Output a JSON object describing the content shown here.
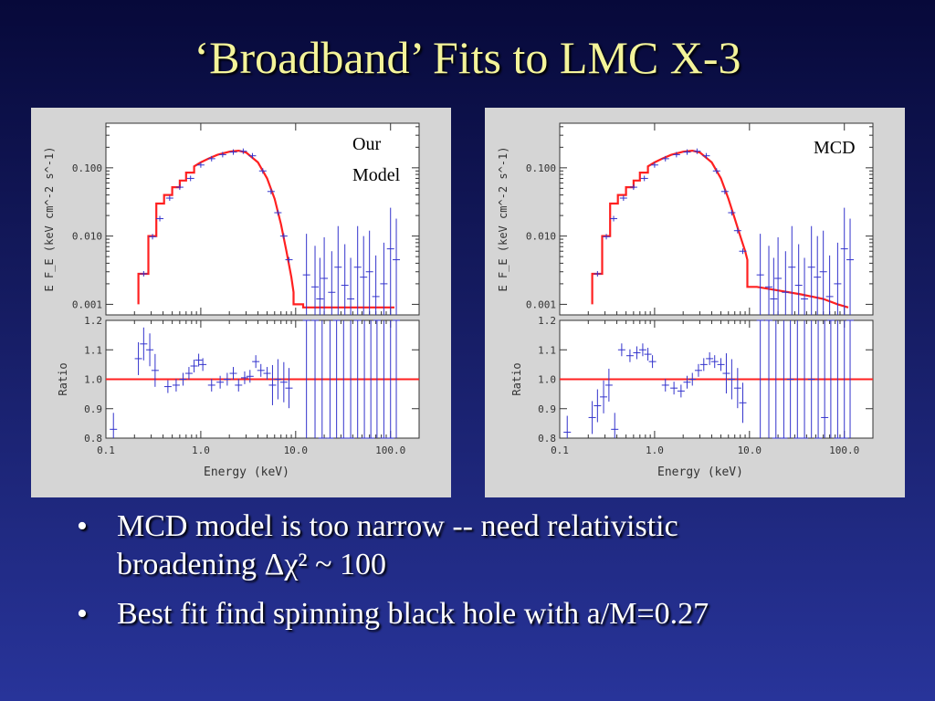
{
  "slide": {
    "title": "‘Broadband’ Fits to LMC X-3",
    "bullets": [
      {
        "dot": "•",
        "line1": "MCD model is too narrow -- need relativistic",
        "line2": "broadening Δχ² ~ 100"
      },
      {
        "dot": "•",
        "line1": "Best fit find spinning black hole with a/M=0.27",
        "line2": ""
      }
    ]
  },
  "colors": {
    "model": "#ff2020",
    "data": "#3333cc",
    "axis": "#333333",
    "panel_bg": "#d5d5d5",
    "title": "#f4f49a"
  },
  "chart_data": [
    {
      "type": "line",
      "label": "Our Model",
      "xlabel": "Energy (keV)",
      "spectrum": {
        "ylabel": "E F_E (keV cm^-2 s^-1)",
        "yscale": "log",
        "xscale": "log",
        "xlim": [
          0.1,
          200
        ],
        "ylim": [
          0.0007,
          0.45
        ],
        "yticks": [
          "0.001",
          "0.010",
          "0.100"
        ],
        "model": [
          [
            0.22,
            0.001
          ],
          [
            0.22,
            0.0028
          ],
          [
            0.28,
            0.0028
          ],
          [
            0.28,
            0.01
          ],
          [
            0.34,
            0.01
          ],
          [
            0.34,
            0.03
          ],
          [
            0.41,
            0.03
          ],
          [
            0.41,
            0.04
          ],
          [
            0.5,
            0.04
          ],
          [
            0.5,
            0.052
          ],
          [
            0.6,
            0.052
          ],
          [
            0.6,
            0.065
          ],
          [
            0.7,
            0.065
          ],
          [
            0.7,
            0.085
          ],
          [
            0.85,
            0.085
          ],
          [
            0.85,
            0.105
          ],
          [
            1.0,
            0.12
          ],
          [
            1.2,
            0.136
          ],
          [
            1.5,
            0.155
          ],
          [
            2.0,
            0.172
          ],
          [
            2.5,
            0.178
          ],
          [
            3.0,
            0.168
          ],
          [
            4.0,
            0.12
          ],
          [
            5.0,
            0.07
          ],
          [
            6.0,
            0.035
          ],
          [
            7.0,
            0.015
          ],
          [
            8.0,
            0.006
          ],
          [
            9.0,
            0.0025
          ],
          [
            9.5,
            0.0015
          ],
          [
            9.5,
            0.001
          ],
          [
            12,
            0.001
          ],
          [
            12,
            0.0009
          ],
          [
            60,
            0.0009
          ],
          [
            110,
            0.0009
          ]
        ],
        "points": [
          [
            0.25,
            0.0028
          ],
          [
            0.31,
            0.0098
          ],
          [
            0.37,
            0.018
          ],
          [
            0.47,
            0.036
          ],
          [
            0.6,
            0.052
          ],
          [
            0.78,
            0.07
          ],
          [
            1.0,
            0.11
          ],
          [
            1.3,
            0.136
          ],
          [
            1.7,
            0.156
          ],
          [
            2.2,
            0.17
          ],
          [
            2.8,
            0.175
          ],
          [
            3.5,
            0.15
          ],
          [
            4.5,
            0.09
          ],
          [
            5.5,
            0.045
          ],
          [
            6.5,
            0.022
          ],
          [
            7.5,
            0.01
          ],
          [
            8.5,
            0.0045
          ],
          [
            13,
            0.0027
          ],
          [
            16,
            0.0018
          ],
          [
            18,
            0.0012
          ],
          [
            20,
            0.0024
          ],
          [
            24,
            0.0015
          ],
          [
            28,
            0.0035
          ],
          [
            33,
            0.0019
          ],
          [
            38,
            0.0012
          ],
          [
            45,
            0.0035
          ],
          [
            52,
            0.0025
          ],
          [
            60,
            0.003
          ],
          [
            70,
            0.0013
          ],
          [
            85,
            0.002
          ],
          [
            100,
            0.0065
          ],
          [
            115,
            0.0045
          ]
        ]
      },
      "ratio": {
        "ylabel": "Ratio",
        "ylim": [
          0.8,
          1.2
        ],
        "yticks": [
          "0.8",
          "0.9",
          "1.0",
          "1.1",
          "1.2"
        ],
        "xticks": [
          "0.1",
          "1.0",
          "10.0",
          "100.0"
        ],
        "model_level": 1.0,
        "points": [
          [
            0.12,
            0.83
          ],
          [
            0.22,
            1.07
          ],
          [
            0.25,
            1.12
          ],
          [
            0.29,
            1.1
          ],
          [
            0.33,
            1.03
          ],
          [
            0.45,
            0.975
          ],
          [
            0.55,
            0.98
          ],
          [
            0.65,
            1.0
          ],
          [
            0.75,
            1.02
          ],
          [
            0.85,
            1.045
          ],
          [
            0.95,
            1.065
          ],
          [
            1.05,
            1.05
          ],
          [
            1.3,
            0.98
          ],
          [
            1.6,
            0.99
          ],
          [
            1.9,
            1.0
          ],
          [
            2.2,
            1.02
          ],
          [
            2.5,
            0.98
          ],
          [
            2.9,
            1.005
          ],
          [
            3.3,
            1.01
          ],
          [
            3.8,
            1.06
          ],
          [
            4.3,
            1.03
          ],
          [
            5.0,
            1.02
          ],
          [
            5.7,
            0.98
          ],
          [
            6.5,
            1.0
          ],
          [
            7.5,
            0.99
          ],
          [
            8.5,
            0.97
          ],
          [
            13,
            1.2
          ],
          [
            16,
            1.2
          ],
          [
            19,
            0.8
          ],
          [
            23,
            0.8
          ],
          [
            27,
            1.2
          ],
          [
            32,
            0.8
          ],
          [
            38,
            0.8
          ],
          [
            45,
            1.2
          ],
          [
            53,
            0.8
          ],
          [
            62,
            0.8
          ],
          [
            72,
            1.2
          ],
          [
            85,
            0.8
          ],
          [
            100,
            0.8
          ],
          [
            115,
            1.2
          ]
        ]
      }
    },
    {
      "type": "line",
      "label": "MCD",
      "xlabel": "Energy (keV)",
      "spectrum": {
        "ylabel": "E F_E (keV cm^-2 s^-1)",
        "yscale": "log",
        "xscale": "log",
        "xlim": [
          0.1,
          200
        ],
        "ylim": [
          0.0007,
          0.45
        ],
        "yticks": [
          "0.001",
          "0.010",
          "0.100"
        ],
        "model": [
          [
            0.22,
            0.001
          ],
          [
            0.22,
            0.0028
          ],
          [
            0.28,
            0.0028
          ],
          [
            0.28,
            0.01
          ],
          [
            0.34,
            0.01
          ],
          [
            0.34,
            0.03
          ],
          [
            0.41,
            0.03
          ],
          [
            0.41,
            0.04
          ],
          [
            0.5,
            0.04
          ],
          [
            0.5,
            0.052
          ],
          [
            0.6,
            0.052
          ],
          [
            0.6,
            0.065
          ],
          [
            0.7,
            0.065
          ],
          [
            0.7,
            0.085
          ],
          [
            0.85,
            0.085
          ],
          [
            0.85,
            0.105
          ],
          [
            1.0,
            0.12
          ],
          [
            1.2,
            0.136
          ],
          [
            1.5,
            0.155
          ],
          [
            2.0,
            0.172
          ],
          [
            2.5,
            0.178
          ],
          [
            3.0,
            0.168
          ],
          [
            4.0,
            0.12
          ],
          [
            5.0,
            0.07
          ],
          [
            6.0,
            0.035
          ],
          [
            7.0,
            0.018
          ],
          [
            8.0,
            0.01
          ],
          [
            9.0,
            0.006
          ],
          [
            9.5,
            0.0045
          ],
          [
            9.5,
            0.0018
          ],
          [
            12,
            0.0018
          ],
          [
            20,
            0.0016
          ],
          [
            35,
            0.0014
          ],
          [
            60,
            0.0012
          ],
          [
            85,
            0.001
          ],
          [
            110,
            0.0009
          ]
        ],
        "points": [
          [
            0.25,
            0.0028
          ],
          [
            0.31,
            0.0098
          ],
          [
            0.37,
            0.018
          ],
          [
            0.47,
            0.036
          ],
          [
            0.6,
            0.052
          ],
          [
            0.78,
            0.07
          ],
          [
            1.0,
            0.11
          ],
          [
            1.3,
            0.136
          ],
          [
            1.7,
            0.156
          ],
          [
            2.2,
            0.17
          ],
          [
            2.8,
            0.175
          ],
          [
            3.5,
            0.15
          ],
          [
            4.5,
            0.09
          ],
          [
            5.5,
            0.045
          ],
          [
            6.5,
            0.022
          ],
          [
            7.5,
            0.012
          ],
          [
            8.5,
            0.006
          ],
          [
            13,
            0.0027
          ],
          [
            16,
            0.0018
          ],
          [
            18,
            0.0012
          ],
          [
            20,
            0.0024
          ],
          [
            24,
            0.0015
          ],
          [
            28,
            0.0035
          ],
          [
            33,
            0.0019
          ],
          [
            38,
            0.0012
          ],
          [
            45,
            0.0035
          ],
          [
            52,
            0.0025
          ],
          [
            60,
            0.003
          ],
          [
            70,
            0.0013
          ],
          [
            85,
            0.002
          ],
          [
            100,
            0.0065
          ],
          [
            115,
            0.0045
          ]
        ]
      },
      "ratio": {
        "ylabel": "Ratio",
        "ylim": [
          0.8,
          1.2
        ],
        "yticks": [
          "0.8",
          "0.9",
          "1.0",
          "1.1",
          "1.2"
        ],
        "xticks": [
          "0.1",
          "1.0",
          "10.0",
          "100.0"
        ],
        "model_level": 1.0,
        "points": [
          [
            0.12,
            0.82
          ],
          [
            0.22,
            0.87
          ],
          [
            0.25,
            0.91
          ],
          [
            0.29,
            0.94
          ],
          [
            0.33,
            0.98
          ],
          [
            0.38,
            0.83
          ],
          [
            0.45,
            1.1
          ],
          [
            0.55,
            1.08
          ],
          [
            0.65,
            1.09
          ],
          [
            0.75,
            1.1
          ],
          [
            0.85,
            1.085
          ],
          [
            0.95,
            1.06
          ],
          [
            1.3,
            0.98
          ],
          [
            1.6,
            0.97
          ],
          [
            1.9,
            0.96
          ],
          [
            2.2,
            0.99
          ],
          [
            2.5,
            1.0
          ],
          [
            2.9,
            1.03
          ],
          [
            3.3,
            1.05
          ],
          [
            3.8,
            1.07
          ],
          [
            4.3,
            1.06
          ],
          [
            5.0,
            1.05
          ],
          [
            5.7,
            1.02
          ],
          [
            6.5,
            1.0
          ],
          [
            7.5,
            0.97
          ],
          [
            8.5,
            0.92
          ],
          [
            13,
            1.2
          ],
          [
            16,
            1.2
          ],
          [
            19,
            0.8
          ],
          [
            23,
            0.8
          ],
          [
            27,
            1.0
          ],
          [
            32,
            0.8
          ],
          [
            38,
            0.8
          ],
          [
            45,
            1.0
          ],
          [
            53,
            0.8
          ],
          [
            62,
            0.87
          ],
          [
            72,
            1.2
          ],
          [
            85,
            0.8
          ],
          [
            100,
            0.8
          ],
          [
            115,
            1.2
          ]
        ]
      }
    }
  ]
}
